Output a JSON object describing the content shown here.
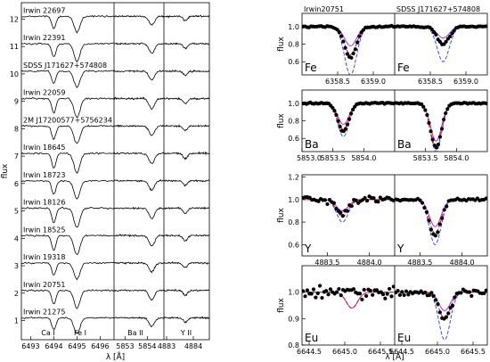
{
  "chart_data": [
    {
      "type": "line",
      "panel": "left-stack",
      "ylabel": "flux",
      "xlabel": "λ [Å]",
      "ylim": [
        0.3,
        12.6
      ],
      "yticks": [
        1,
        2,
        3,
        4,
        5,
        6,
        7,
        8,
        9,
        10,
        11,
        12
      ],
      "segments": [
        {
          "name": "Fe I",
          "xlim": [
            6492.6,
            6496.6
          ],
          "ticks": [
            6493,
            6494,
            6495,
            6496
          ],
          "ticklabels": [
            "6493",
            "6494",
            "6495",
            "6496"
          ],
          "lines": [
            {
              "center": 6494.0,
              "depth": 1.0,
              "width": 0.09
            },
            {
              "center": 6495.0,
              "depth": 1.3,
              "width": 0.13
            }
          ]
        },
        {
          "name": "Ba II",
          "xlim": [
            6853.0,
            6853.9
          ],
          "ticks": [
            6853.2,
            6853.6
          ],
          "ticklabels": [
            "5853",
            "5854"
          ],
          "lines": [
            {
              "center": 6853.68,
              "depth": 0.7,
              "width": 0.05
            }
          ]
        },
        {
          "name": "Y II",
          "xlim": [
            6882.9,
            6884.6
          ],
          "ticks": [
            6883.0,
            6884.0
          ],
          "ticklabels": [
            "4883",
            "4884"
          ],
          "lines": [
            {
              "center": 6883.7,
              "depth": 0.35,
              "width": 0.08
            }
          ]
        }
      ],
      "line_labels": [
        "Ca I",
        "Fe I",
        "Ba II",
        "Y II"
      ],
      "series": [
        {
          "name": "Irwin 22697",
          "offset": 12,
          "scale": 0.5
        },
        {
          "name": "Irwin 22391",
          "offset": 11,
          "scale": 0.55
        },
        {
          "name": "SDSS J171627+574808",
          "offset": 10,
          "scale": 0.5
        },
        {
          "name": "Irwin 22059",
          "offset": 9,
          "scale": 0.6
        },
        {
          "name": "2M J17200577+5756234",
          "offset": 8,
          "scale": 0.55
        },
        {
          "name": "Irwin 18645",
          "offset": 7,
          "scale": 0.6
        },
        {
          "name": "Irwin 18723",
          "offset": 6,
          "scale": 0.55
        },
        {
          "name": "Irwin 18126",
          "offset": 5,
          "scale": 0.6
        },
        {
          "name": "Irwin 18525",
          "offset": 4,
          "scale": 0.6
        },
        {
          "name": "Irwin 19318",
          "offset": 3,
          "scale": 0.5
        },
        {
          "name": "Irwin 20751",
          "offset": 2,
          "scale": 0.55
        },
        {
          "name": "Irwin 21275",
          "offset": 1,
          "scale": 0.5
        }
      ]
    },
    {
      "type": "scatter",
      "panel": "right-grid",
      "ylabel": "flux",
      "xlabel": "λ [Å]",
      "column_stars": [
        "Irwin20751",
        "SDSS J171627+574808"
      ],
      "rows": [
        {
          "element": "Fe",
          "ylim": [
            0.45,
            1.15
          ],
          "yticks": [
            0.6,
            0.8,
            1.0
          ],
          "yticklabels": [
            "0.6",
            "0.8",
            "1.0"
          ],
          "columns": [
            {
              "xlim": [
                6358.0,
                6359.3
              ],
              "ticks": [
                6358.5,
                6359.0
              ],
              "ticklabels": [
                "6358.5",
                "6359.0"
              ],
              "center": 6358.68,
              "depth": 0.35,
              "sigma": 0.085,
              "synth_depths": [
                0.22,
                0.32,
                0.55
              ],
              "noise": 0.015,
              "n_points": 46
            },
            {
              "xlim": [
                6358.0,
                6359.3
              ],
              "ticks": [
                6358.5,
                6359.0
              ],
              "ticklabels": [
                "6358.5",
                "6359.0"
              ],
              "center": 6358.68,
              "depth": 0.2,
              "sigma": 0.085,
              "synth_depths": [
                0.13,
                0.19,
                0.4
              ],
              "noise": 0.015,
              "n_points": 46
            }
          ]
        },
        {
          "element": "Ba",
          "ylim": [
            0.45,
            1.15
          ],
          "yticks": [
            0.6,
            0.8,
            1.0
          ],
          "yticklabels": [
            "0.6",
            "0.8",
            "1.0"
          ],
          "columns": [
            {
              "xlim": [
                5853.0,
                5854.5
              ],
              "ticks": [
                5853.0,
                5853.5,
                5854.0
              ],
              "ticklabels": [
                "5853.0",
                "5853.5",
                "5854.0"
              ],
              "center": 5853.67,
              "depth": 0.32,
              "sigma": 0.09,
              "synth_depths": [
                0.24,
                0.3,
                0.38
              ],
              "noise": 0.012,
              "n_points": 50
            },
            {
              "xlim": [
                5853.0,
                5854.5
              ],
              "ticks": [
                5853.5,
                5854.0
              ],
              "ticklabels": [
                "5853.5",
                "5854.0"
              ],
              "center": 5853.67,
              "depth": 0.5,
              "sigma": 0.09,
              "synth_depths": [
                0.43,
                0.5,
                0.55
              ],
              "noise": 0.012,
              "n_points": 50
            }
          ]
        },
        {
          "element": "Y",
          "ylim": [
            0.5,
            1.22
          ],
          "yticks": [
            0.6,
            0.8,
            1.0,
            1.2
          ],
          "yticklabels": [
            "0.6",
            "0.8",
            "1.0",
            "1.2"
          ],
          "columns": [
            {
              "xlim": [
                4883.2,
                4884.3
              ],
              "ticks": [
                4883.5,
                4884.0
              ],
              "ticklabels": [
                "4883.5",
                "4884.0"
              ],
              "center": 4883.68,
              "depth": 0.12,
              "sigma": 0.07,
              "synth_depths": [
                0.1,
                0.15,
                0.2
              ],
              "noise": 0.05,
              "n_points": 42
            },
            {
              "xlim": [
                4883.2,
                4884.3
              ],
              "ticks": [
                4883.5,
                4884.0
              ],
              "ticklabels": [
                "4883.5",
                "4884.0"
              ],
              "center": 4883.68,
              "depth": 0.32,
              "sigma": 0.07,
              "synth_depths": [
                0.24,
                0.3,
                0.4
              ],
              "noise": 0.02,
              "n_points": 42
            }
          ]
        },
        {
          "element": "Eu",
          "ylim": [
            0.8,
            1.1
          ],
          "yticks": [
            0.8,
            0.9,
            1.0
          ],
          "yticklabels": [
            "0.8",
            "0.9",
            "1.0"
          ],
          "columns": [
            {
              "xlim": [
                6644.4,
                6645.7
              ],
              "ticks": [
                6644.5,
                6645.0,
                6645.5
              ],
              "ticklabels": [
                "6644.5",
                "6645.0",
                "6645.5"
              ],
              "center": 6645.1,
              "depth": 0.0,
              "sigma": 0.08,
              "synth_depths": [
                0.06,
                0.06,
                0.06
              ],
              "noise": 0.035,
              "n_points": 44
            },
            {
              "xlim": [
                6644.4,
                6645.7
              ],
              "ticks": [
                6644.5,
                6645.0,
                6645.5
              ],
              "ticklabels": [
                "6644.5",
                "6645.0",
                "6645.5"
              ],
              "center": 6645.1,
              "depth": 0.1,
              "sigma": 0.08,
              "synth_depths": [
                0.07,
                0.1,
                0.18
              ],
              "noise": 0.015,
              "n_points": 44
            }
          ]
        }
      ],
      "colors": {
        "observed": "#000000",
        "synth_primary": "#e41a1c",
        "synth_low": "#a020f0",
        "synth_high": "#1f3fd6"
      }
    }
  ]
}
